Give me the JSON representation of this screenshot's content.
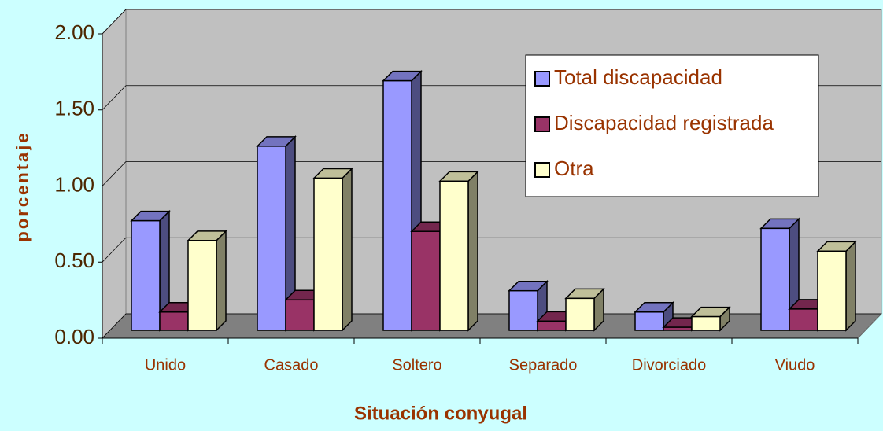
{
  "chart_data": {
    "type": "bar3d",
    "x_label": "Situación conyugal",
    "y_label": "porcentaje",
    "categories": [
      "Unido",
      "Casado",
      "Soltero",
      "Separado",
      "Divorciado",
      "Viudo"
    ],
    "series": [
      {
        "name": "Total discapacidad",
        "color": "#9999ff",
        "values": [
          0.72,
          1.21,
          1.64,
          0.26,
          0.12,
          0.67
        ]
      },
      {
        "name": "Discapacidad registrada",
        "color": "#993366",
        "values": [
          0.12,
          0.2,
          0.65,
          0.06,
          0.02,
          0.14
        ]
      },
      {
        "name": "Otra",
        "color": "#ffffcc",
        "values": [
          0.59,
          1.0,
          0.98,
          0.21,
          0.09,
          0.52
        ]
      }
    ],
    "ylim": [
      0,
      2
    ],
    "yticks": [
      {
        "value": 0,
        "label": "0.00"
      },
      {
        "value": 0.5,
        "label": "0.50"
      },
      {
        "value": 1,
        "label": "1.00"
      },
      {
        "value": 1.5,
        "label": "1.50"
      },
      {
        "value": 2,
        "label": "2.00"
      }
    ],
    "grid": true,
    "legend": "upper right"
  }
}
